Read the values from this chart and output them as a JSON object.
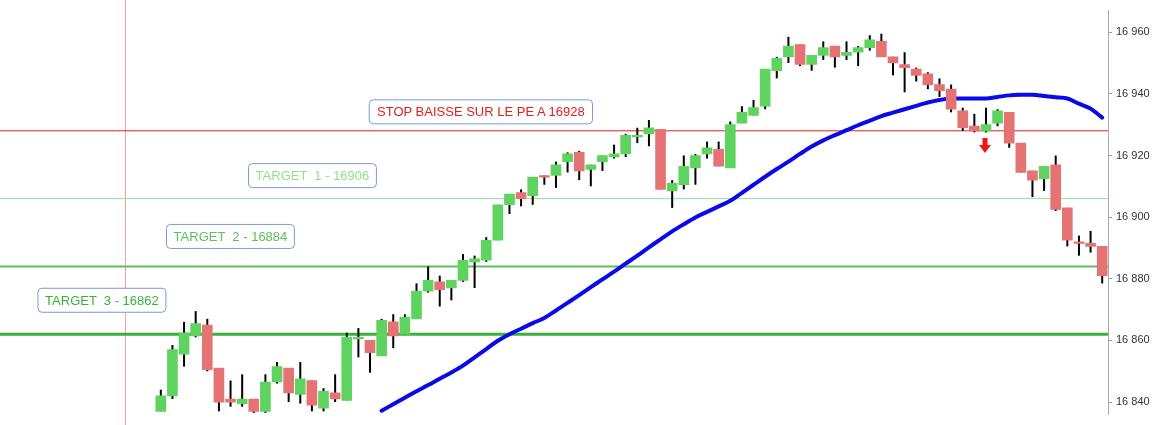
{
  "chart_data": {
    "type": "candlestick",
    "categories": [
      null,
      null,
      null,
      null,
      null,
      null,
      null,
      null,
      null,
      null,
      null,
      null,
      null,
      null,
      null,
      null,
      null,
      null,
      null,
      null,
      null,
      null,
      null,
      null,
      null,
      null,
      null,
      null,
      null,
      null,
      null,
      null,
      null,
      null,
      null,
      null,
      null,
      null,
      null,
      null,
      null,
      null,
      null,
      null,
      null,
      null,
      null,
      null,
      null,
      null,
      null,
      null,
      null,
      null,
      null,
      null,
      null,
      null,
      null,
      null,
      null,
      null,
      null,
      null,
      null,
      null,
      null,
      null,
      null,
      null,
      null,
      null,
      null,
      null,
      null,
      null,
      null,
      null,
      null,
      null,
      null,
      null
    ],
    "ohlc": [
      [
        16837,
        16844,
        16837,
        16842
      ],
      [
        16842,
        16858.5,
        16841,
        16857
      ],
      [
        16855.5,
        16866,
        16851.5,
        16862.5
      ],
      [
        16861.5,
        16869.5,
        16861,
        16865.5
      ],
      [
        16865,
        16867,
        16850,
        16850.5
      ],
      [
        16851,
        16851,
        16837,
        16840
      ],
      [
        16841,
        16847,
        16838.5,
        16840
      ],
      [
        16839.5,
        16849,
        16838.5,
        16841
      ],
      [
        16841,
        16841,
        16836.5,
        16837
      ],
      [
        16837,
        16849,
        16836.5,
        16846.5
      ],
      [
        16846.5,
        16853,
        16846,
        16851.5
      ],
      [
        16851,
        16851,
        16840,
        16843
      ],
      [
        16842.5,
        16853,
        16839.5,
        16847.5
      ],
      [
        16847,
        16847,
        16837,
        16839
      ],
      [
        16838,
        16844.5,
        16837,
        16843.5
      ],
      [
        16843,
        16849,
        16840,
        16841
      ],
      [
        16840.5,
        16862.5,
        16840.5,
        16861
      ],
      [
        16860.5,
        16864,
        16854.5,
        16861
      ],
      [
        16860,
        16860,
        16849.5,
        16856
      ],
      [
        16855,
        16867,
        16855,
        16866.5
      ],
      [
        16866,
        16868.5,
        16857.5,
        16861.5
      ],
      [
        16862,
        16868.5,
        16862,
        16867.5
      ],
      [
        16867,
        16878.5,
        16867,
        16876
      ],
      [
        16876,
        16884,
        16875.5,
        16879.5
      ],
      [
        16879,
        16881,
        16871,
        16876.5
      ],
      [
        16877,
        16879.5,
        16873,
        16879.5
      ],
      [
        16879.5,
        16888,
        16879,
        16886
      ],
      [
        16885.5,
        16887.5,
        16877,
        16886.5
      ],
      [
        16886,
        16893.5,
        16885.5,
        16892.5
      ],
      [
        16892.5,
        16904,
        16892.5,
        16904
      ],
      [
        16904,
        16907.5,
        16901,
        16907.5
      ],
      [
        16908,
        16909,
        16903.5,
        16906
      ],
      [
        16907,
        16913,
        16904,
        16913
      ],
      [
        16913.5,
        16913.5,
        16910.5,
        16913
      ],
      [
        16913.5,
        16918,
        16909.5,
        16917
      ],
      [
        16918,
        16921,
        16914.5,
        16920.5
      ],
      [
        16921,
        16921.5,
        16912,
        16915
      ],
      [
        16915.5,
        16917,
        16910,
        16917
      ],
      [
        16918,
        16920,
        16915,
        16920
      ],
      [
        16919.5,
        16923.5,
        16919,
        16920.5
      ],
      [
        16920.5,
        16927,
        16919.5,
        16926.5
      ],
      [
        16926,
        16929,
        16924,
        16926.5
      ],
      [
        16927,
        16931.5,
        16923,
        16929
      ],
      [
        16928.5,
        16928.5,
        16909,
        16909
      ],
      [
        16908.5,
        16912,
        16903,
        16911
      ],
      [
        16910.5,
        16920,
        16909,
        16916.5
      ],
      [
        16916,
        16920.5,
        16910.5,
        16920
      ],
      [
        16920.5,
        16924.5,
        16919,
        16922.5
      ],
      [
        16922,
        16924.5,
        16916.5,
        16916.5
      ],
      [
        16916,
        16931,
        16916,
        16930
      ],
      [
        16930.5,
        16936,
        16930.5,
        16934
      ],
      [
        16933,
        16938,
        16933,
        16935.5
      ],
      [
        16936,
        16948,
        16935,
        16948
      ],
      [
        16947.5,
        16952,
        16945,
        16951.5
      ],
      [
        16952,
        16958.5,
        16950,
        16955.5
      ],
      [
        16956,
        16956,
        16949,
        16949.5
      ],
      [
        16949.5,
        16952.5,
        16947.5,
        16952.5
      ],
      [
        16952.5,
        16957,
        16951,
        16955
      ],
      [
        16955.5,
        16955.5,
        16948.5,
        16952
      ],
      [
        16952.5,
        16957,
        16951,
        16953.5
      ],
      [
        16953.5,
        16955.5,
        16949,
        16955
      ],
      [
        16955,
        16959,
        16954,
        16957.5
      ],
      [
        16957,
        16959.5,
        16952,
        16952
      ],
      [
        16952,
        16952,
        16946,
        16950
      ],
      [
        16949.5,
        16953.5,
        16940.5,
        16948.5
      ],
      [
        16948,
        16948.5,
        16944,
        16946
      ],
      [
        16946.5,
        16947,
        16941.5,
        16943
      ],
      [
        16943,
        16945,
        16939,
        16941
      ],
      [
        16941.5,
        16943,
        16934,
        16935
      ],
      [
        16934.5,
        16935.5,
        16928,
        16929
      ],
      [
        16929.5,
        16933.5,
        16927.5,
        16928
      ],
      [
        16928,
        16935.5,
        16927.5,
        16930
      ],
      [
        16930.5,
        16935,
        16929.5,
        16934.5
      ],
      [
        16934,
        16934,
        16922.5,
        16924
      ],
      [
        16924,
        16924,
        16914.5,
        16914.5
      ],
      [
        16915,
        16915,
        16906.5,
        16912
      ],
      [
        16912.5,
        16916.5,
        16908.5,
        16916.5
      ],
      [
        16917,
        16920,
        16902,
        16902.5
      ],
      [
        16903,
        16903,
        16890.5,
        16892.5
      ],
      [
        16892,
        16894,
        16887.5,
        16891.5
      ],
      [
        16891.5,
        16895.5,
        16888.5,
        16890.5
      ],
      [
        16890.5,
        16890.5,
        16878.5,
        16881
      ]
    ],
    "colors": [
      "#5fd35f",
      "#5fd35f",
      "#5fd35f",
      "#5fd35f",
      "#e57373",
      "#e57373",
      "#e57373",
      "#5fd35f",
      "#e57373",
      "#5fd35f",
      "#5fd35f",
      "#e57373",
      "#5fd35f",
      "#e57373",
      "#5fd35f",
      "#e57373",
      "#5fd35f",
      "#5fd35f",
      "#e57373",
      "#5fd35f",
      "#e57373",
      "#5fd35f",
      "#5fd35f",
      "#5fd35f",
      "#e57373",
      "#5fd35f",
      "#5fd35f",
      "#5fd35f",
      "#5fd35f",
      "#5fd35f",
      "#5fd35f",
      "#e57373",
      "#5fd35f",
      "#e57373",
      "#5fd35f",
      "#5fd35f",
      "#e57373",
      "#5fd35f",
      "#5fd35f",
      "#5fd35f",
      "#5fd35f",
      "#5fd35f",
      "#5fd35f",
      "#e57373",
      "#5fd35f",
      "#5fd35f",
      "#5fd35f",
      "#5fd35f",
      "#e57373",
      "#5fd35f",
      "#5fd35f",
      "#5fd35f",
      "#5fd35f",
      "#5fd35f",
      "#5fd35f",
      "#e57373",
      "#5fd35f",
      "#5fd35f",
      "#e57373",
      "#5fd35f",
      "#5fd35f",
      "#5fd35f",
      "#e57373",
      "#e57373",
      "#e57373",
      "#e57373",
      "#e57373",
      "#e57373",
      "#e57373",
      "#e57373",
      "#e57373",
      "#5fd35f",
      "#5fd35f",
      "#e57373",
      "#e57373",
      "#e57373",
      "#5fd35f",
      "#e57373",
      "#e57373",
      "#e57373",
      "#e57373",
      "#e57373"
    ],
    "series": [
      {
        "type": "line",
        "color": "#0a0ae6",
        "values": [
          null,
          null,
          null,
          null,
          null,
          null,
          null,
          null,
          null,
          null,
          null,
          null,
          null,
          null,
          null,
          null,
          null,
          null,
          null,
          16837.2,
          16839.3,
          16841.4,
          16843.5,
          16845.5,
          16847.6,
          16849.6,
          16851.8,
          16854.5,
          16857.2,
          16859.9,
          16862,
          16863.8,
          16865.6,
          16867.3,
          16869.7,
          16872.2,
          16874.7,
          16877.3,
          16879.8,
          16882.3,
          16884.9,
          16887.5,
          16890.2,
          16892.8,
          16895.4,
          16897.7,
          16899.9,
          16901.7,
          16903.5,
          16905.3,
          16907.9,
          16910.5,
          16913.1,
          16915.6,
          16918,
          16920.5,
          16922.9,
          16924.9,
          16926.6,
          16928.2,
          16929.8,
          16931.3,
          16932.8,
          16933.9,
          16935,
          16936.1,
          16937.2,
          16938,
          16938.5,
          16938.5,
          16938.5,
          16938.5,
          16939,
          16939.5,
          16939.7,
          16939.7,
          16939.3,
          16938.9,
          16938.5,
          16936.8,
          16935.2,
          16932.3
        ]
      }
    ],
    "ylim": [
      16836,
      16967
    ],
    "yticks": [
      {
        "value": 16840,
        "label": "16 840"
      },
      {
        "value": 16860,
        "label": "16 860"
      },
      {
        "value": 16880,
        "label": "16 880"
      },
      {
        "value": 16900,
        "label": "16 900"
      },
      {
        "value": 16920,
        "label": "16 920"
      },
      {
        "value": 16940,
        "label": "16 940"
      },
      {
        "value": 16960,
        "label": "16 960"
      }
    ],
    "grid": false,
    "legend": false,
    "ref_lines": [
      {
        "axis": "y",
        "value": 16928,
        "label": "STOP BAISSE SUR LE PE A 16928",
        "color": "#e02020"
      },
      {
        "axis": "y",
        "value": 16906,
        "label": "TARGET  1 - 16906",
        "color": "#90e090"
      },
      {
        "axis": "y",
        "value": 16884,
        "label": "TARGET  2 - 16884",
        "color": "#5cc05c"
      },
      {
        "axis": "y",
        "value": 16862,
        "label": "TARGET  3 - 16862",
        "color": "#3cb03c"
      }
    ]
  }
}
